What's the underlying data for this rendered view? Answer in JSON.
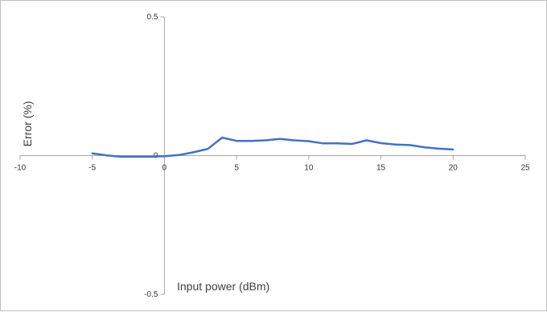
{
  "chart_data": {
    "type": "line",
    "title": "",
    "xlabel": "Input power (dBm)",
    "ylabel": "Error (%)",
    "xlim": [
      -10,
      25
    ],
    "ylim": [
      -0.5,
      0.5
    ],
    "x_ticks": [
      "-10",
      "-5",
      "0",
      "5",
      "10",
      "15",
      "20",
      "25"
    ],
    "y_ticks": [
      "0.5",
      "0",
      "-0.5"
    ],
    "grid": false,
    "legend": "none",
    "series": [
      {
        "color": "#4472c4",
        "x": [
          -5,
          -4,
          -3,
          -2,
          -1,
          0,
          1,
          2,
          3,
          4,
          5,
          6,
          7,
          8,
          9,
          10,
          11,
          12,
          13,
          14,
          15,
          16,
          17,
          18,
          19,
          20
        ],
        "y": [
          0.008,
          0.001,
          -0.004,
          -0.004,
          -0.004,
          -0.002,
          0.002,
          0.012,
          0.024,
          0.065,
          0.053,
          0.053,
          0.055,
          0.06,
          0.055,
          0.052,
          0.044,
          0.044,
          0.042,
          0.055,
          0.045,
          0.04,
          0.038,
          0.03,
          0.025,
          0.022
        ]
      }
    ]
  }
}
